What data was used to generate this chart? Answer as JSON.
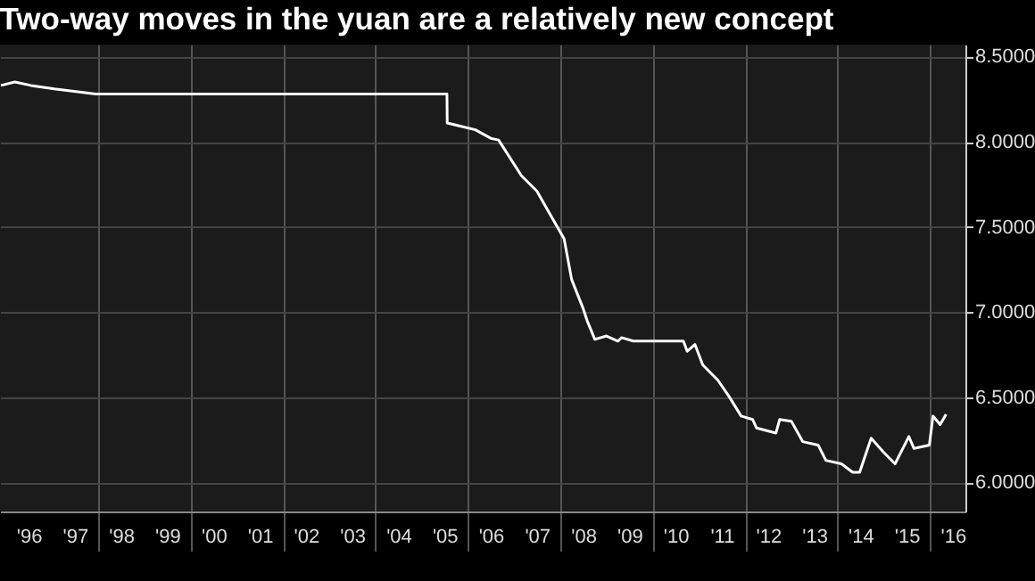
{
  "chart_data": {
    "type": "line",
    "title": "Two-way moves in the yuan are a relatively new concept",
    "x": [
      "1995-11-24",
      "1996-03-13",
      "1996-07-19",
      "1997-01-19",
      "1997-12-13",
      "2005-07-20",
      "2005-07-22",
      "2006-03",
      "2006-07",
      "2006-09",
      "2007-03",
      "2007-07",
      "2007-10",
      "2008-02",
      "2008-04",
      "2008-07",
      "2008-08",
      "2008-10",
      "2009-01",
      "2009-04",
      "2009-05",
      "2009-08",
      "2010-09",
      "2010-10",
      "2010-12",
      "2011-02",
      "2011-06",
      "2011-09",
      "2011-12",
      "2012-03",
      "2012-04",
      "2012-09",
      "2012-10",
      "2013-01",
      "2013-04",
      "2013-08",
      "2013-10",
      "2014-02",
      "2014-05",
      "2014-06-25",
      "2014-09-24",
      "2014-12-28",
      "2015-04",
      "2015-07-19",
      "2015-08-28",
      "2015-12-28",
      "2016-01-26",
      "2016-03-22",
      "2016-05-08"
    ],
    "series": [
      {
        "color": "#ffffff",
        "values": [
          8.33,
          8.35,
          8.33,
          8.31,
          8.28,
          8.28,
          8.11,
          8.07,
          8.02,
          8.01,
          7.8,
          7.71,
          7.59,
          7.43,
          7.19,
          7.02,
          6.95,
          6.84,
          6.86,
          6.83,
          6.85,
          6.83,
          6.83,
          6.77,
          6.81,
          6.69,
          6.6,
          6.5,
          6.39,
          6.37,
          6.32,
          6.29,
          6.37,
          6.36,
          6.24,
          6.22,
          6.13,
          6.11,
          6.06,
          6.06,
          6.26,
          6.18,
          6.11,
          6.27,
          6.2,
          6.22,
          6.39,
          6.34,
          6.4
        ]
      }
    ],
    "xlim": [
      "1995-11-17",
      "2016-10-08"
    ],
    "xticks": [
      {
        "value": "1996-07",
        "label": "'96"
      },
      {
        "value": "1997-07",
        "label": "'97"
      },
      {
        "value": "1998-07",
        "label": "'98"
      },
      {
        "value": "1999-07",
        "label": "'99"
      },
      {
        "value": "2000-07",
        "label": "'00"
      },
      {
        "value": "2001-07",
        "label": "'01"
      },
      {
        "value": "2002-07",
        "label": "'02"
      },
      {
        "value": "2003-07",
        "label": "'03"
      },
      {
        "value": "2004-07",
        "label": "'04"
      },
      {
        "value": "2005-07",
        "label": "'05"
      },
      {
        "value": "2006-07",
        "label": "'06"
      },
      {
        "value": "2007-07",
        "label": "'07"
      },
      {
        "value": "2008-07",
        "label": "'08"
      },
      {
        "value": "2009-07",
        "label": "'09"
      },
      {
        "value": "2010-07",
        "label": "'10"
      },
      {
        "value": "2011-07",
        "label": "'11"
      },
      {
        "value": "2012-07",
        "label": "'12"
      },
      {
        "value": "2013-07",
        "label": "'13"
      },
      {
        "value": "2014-07",
        "label": "'14"
      },
      {
        "value": "2015-07",
        "label": "'15"
      },
      {
        "value": "2016-07",
        "label": "'16"
      },
      {
        "value": "1998",
        "label": null
      },
      {
        "value": "2000",
        "label": null
      },
      {
        "value": "2002",
        "label": null
      },
      {
        "value": "2004",
        "label": null
      },
      {
        "value": "2006",
        "label": null
      },
      {
        "value": "2008",
        "label": null
      },
      {
        "value": "2010",
        "label": null
      },
      {
        "value": "2012",
        "label": null
      },
      {
        "value": "2014",
        "label": null
      },
      {
        "value": "2016",
        "label": null
      }
    ],
    "ylim": [
      5.83,
      8.57
    ],
    "yticks": [
      {
        "value": 6,
        "label": "6.0000"
      },
      {
        "value": 6.5,
        "label": "6.5000"
      },
      {
        "value": 7,
        "label": "7.0000"
      },
      {
        "value": 7.5,
        "label": "7.5000"
      },
      {
        "value": 8,
        "label": "8.0000"
      },
      {
        "value": 8.5,
        "label": "8.5000"
      }
    ],
    "grid": true
  }
}
